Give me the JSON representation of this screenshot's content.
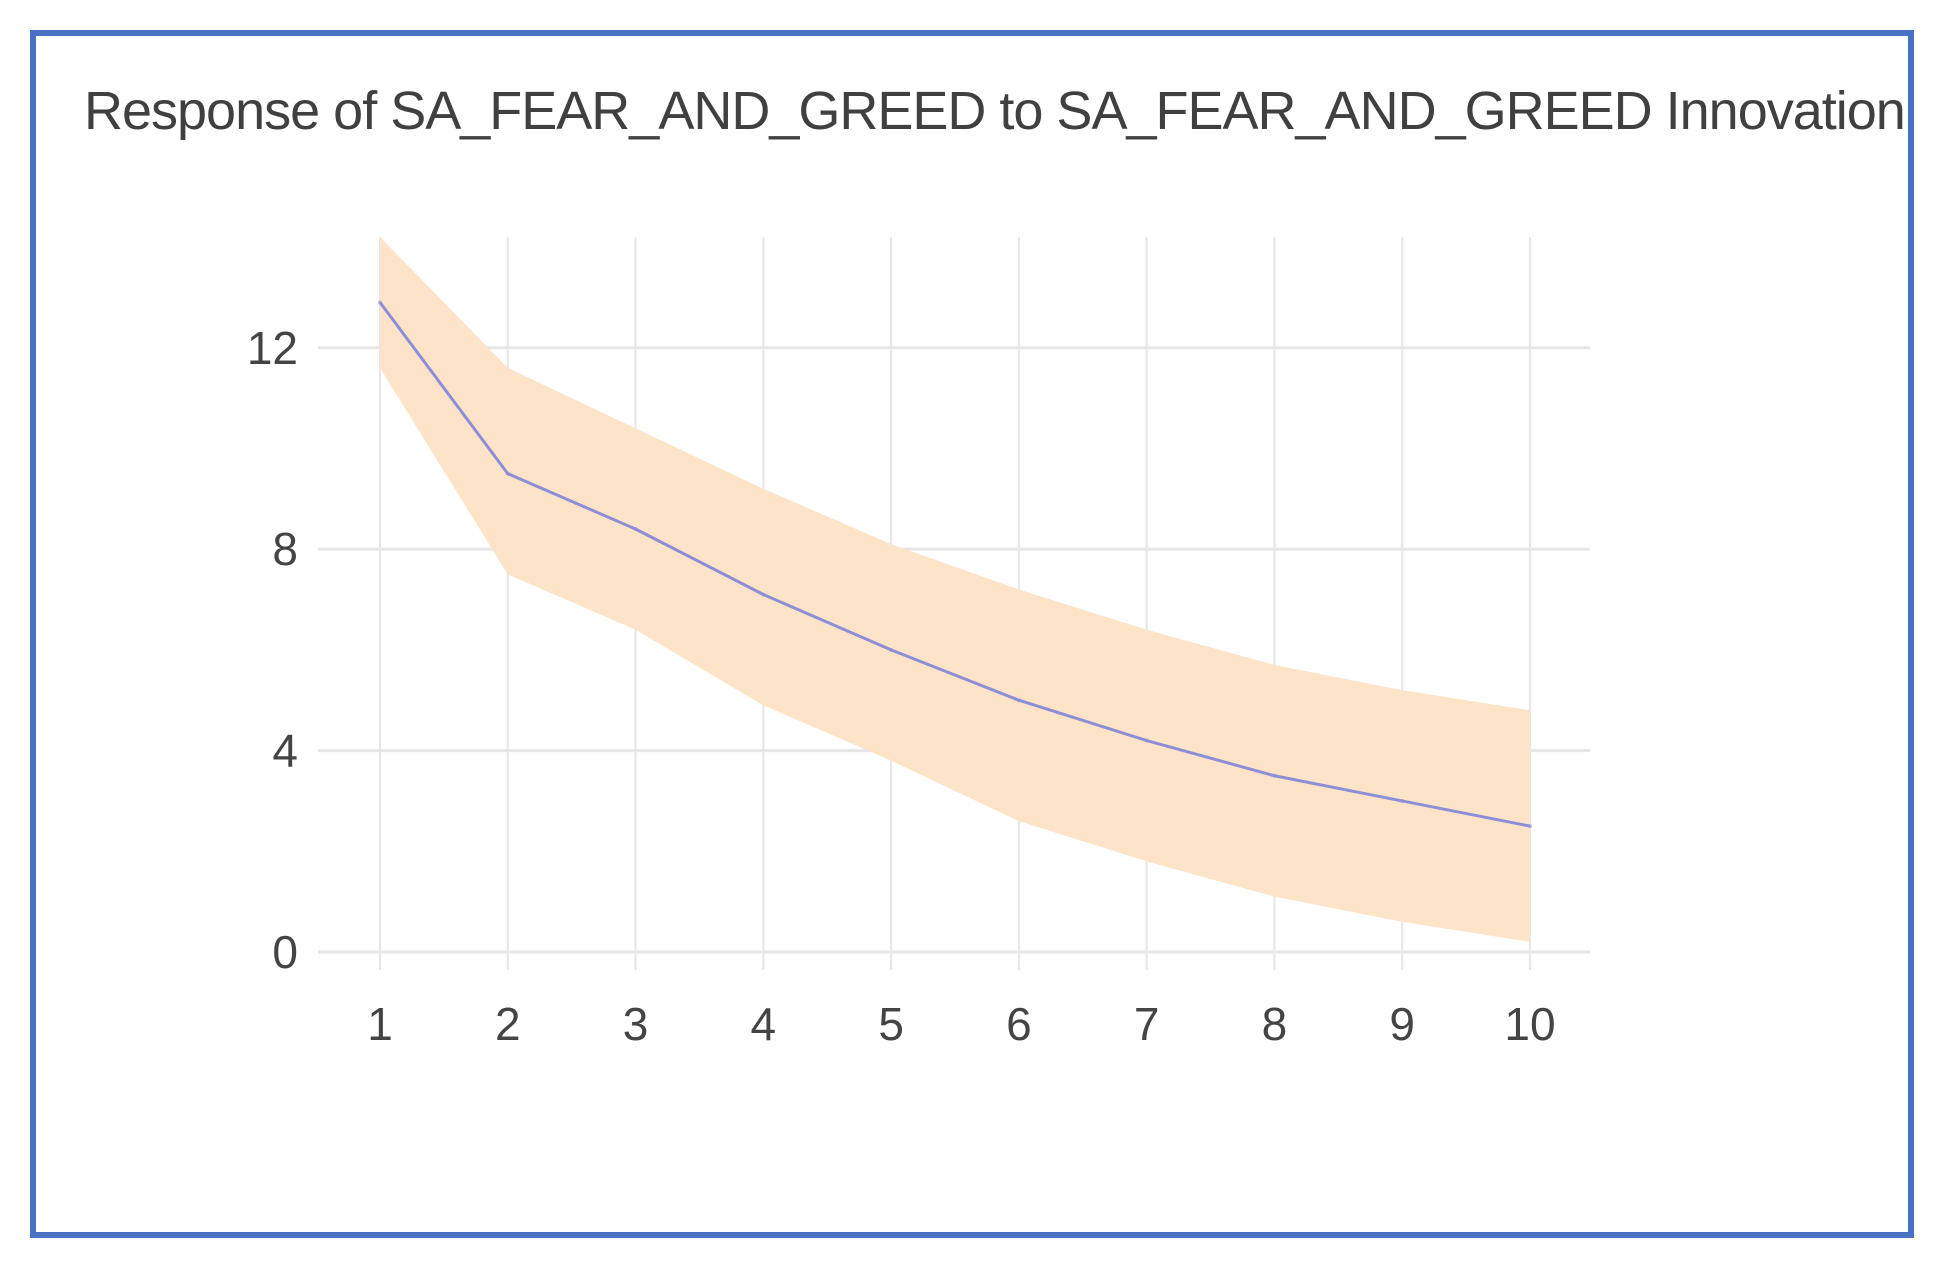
{
  "chart_data": {
    "type": "line",
    "title": "Response of SA_FEAR_AND_GREED to SA_FEAR_AND_GREED Innovation",
    "x": [
      1,
      2,
      3,
      4,
      5,
      6,
      7,
      8,
      9,
      10
    ],
    "series": [
      {
        "values": [
          12.9,
          9.5,
          8.4,
          7.1,
          6.0,
          5.0,
          4.2,
          3.5,
          3.0,
          2.5
        ]
      }
    ],
    "confidence_band": {
      "upper": [
        14.2,
        11.6,
        10.4,
        9.2,
        8.1,
        7.2,
        6.4,
        5.7,
        5.2,
        4.8
      ],
      "lower": [
        11.6,
        7.5,
        6.4,
        4.9,
        3.8,
        2.6,
        1.8,
        1.1,
        0.6,
        0.2
      ]
    },
    "xticks": [
      "1",
      "2",
      "3",
      "4",
      "5",
      "6",
      "7",
      "8",
      "9",
      "10"
    ],
    "yticks": [
      "0",
      "4",
      "8",
      "12"
    ],
    "ytick_values": [
      0,
      4,
      8,
      12
    ],
    "xlabel": "",
    "ylabel": "",
    "ylim": [
      0,
      14.2
    ],
    "xlim": [
      1,
      10
    ],
    "grid": true,
    "colors": {
      "line": "#8e8ed6",
      "band": "#fde4c9",
      "grid": "#e6e6e6",
      "frame": "#4a72c4"
    }
  }
}
